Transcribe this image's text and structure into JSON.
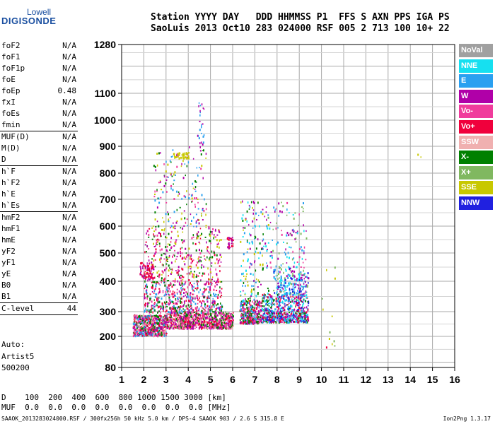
{
  "brand": {
    "line1": "Lowell",
    "line2": "DIGISONDE"
  },
  "header": {
    "line1": "Station YYYY DAY   DDD HHMMSS P1  FFS S AXN PPS IGA PS",
    "line2": "SaoLuis 2013 Oct10 283 024000 RSF 005 2 713 100 10+ 22"
  },
  "parameters": [
    {
      "k": "foF2",
      "v": "N/A"
    },
    {
      "k": "foF1",
      "v": "N/A"
    },
    {
      "k": "foF1p",
      "v": "N/A"
    },
    {
      "k": "foE",
      "v": "N/A"
    },
    {
      "k": "foEp",
      "v": "0.48"
    },
    {
      "k": "fxI",
      "v": "N/A"
    },
    {
      "k": "foEs",
      "v": "N/A"
    },
    {
      "k": "fmin",
      "v": "N/A"
    },
    {
      "sep": true
    },
    {
      "k": "MUF(D)",
      "v": "N/A"
    },
    {
      "k": "M(D)",
      "v": "N/A"
    },
    {
      "k": "D",
      "v": "N/A"
    },
    {
      "sep": true
    },
    {
      "k": "h`F",
      "v": "N/A"
    },
    {
      "k": "h`F2",
      "v": "N/A"
    },
    {
      "k": "h`E",
      "v": "N/A"
    },
    {
      "k": "h`Es",
      "v": "N/A"
    },
    {
      "sep": true
    },
    {
      "k": "hmF2",
      "v": "N/A"
    },
    {
      "k": "hmF1",
      "v": "N/A"
    },
    {
      "k": "hmE",
      "v": "N/A"
    },
    {
      "k": "yF2",
      "v": "N/A"
    },
    {
      "k": "yF1",
      "v": "N/A"
    },
    {
      "k": "yE",
      "v": "N/A"
    },
    {
      "k": "B0",
      "v": "N/A"
    },
    {
      "k": "B1",
      "v": "N/A"
    },
    {
      "sep": true
    },
    {
      "k": "C-level",
      "v": "44"
    },
    {
      "sep": true
    }
  ],
  "auto": {
    "line1": "Auto:",
    "line2": "Artist5",
    "line3": "500200"
  },
  "footer": {
    "line1": "D    100  200  400  600  800 1000 1500 3000 [km]",
    "line2": "MUF  0.0  0.0  0.0  0.0  0.0  0.0  0.0  0.0 [MHz]",
    "line3": "SAAOK_2013283024000.RSF / 300fx256h 50 kHz 5.0 km / DPS-4 SAAOK 903 / 2.6 S 315.8 E",
    "version": "Ion2Png 1.3.17"
  },
  "legend": [
    {
      "label": "NoVal",
      "color": "#a0a0a0"
    },
    {
      "label": "NNE",
      "color": "#16e0f0"
    },
    {
      "label": "E",
      "color": "#2aa0f0"
    },
    {
      "label": "W",
      "color": "#b000a8"
    },
    {
      "label": "Vo-",
      "color": "#f03c9c"
    },
    {
      "label": "Vo+",
      "color": "#f0003c"
    },
    {
      "label": "SSW",
      "color": "#f0b0b0"
    },
    {
      "label": "X-",
      "color": "#008000"
    },
    {
      "label": "X+",
      "color": "#80b860"
    },
    {
      "label": "SSE",
      "color": "#c8c800"
    },
    {
      "label": "NNW",
      "color": "#2020e0"
    }
  ],
  "chart_data": {
    "type": "scatter",
    "xlim": [
      1,
      16
    ],
    "x_ticks": [
      "1",
      "2",
      "3",
      "4",
      "5",
      "6",
      "7",
      "8",
      "9",
      "10",
      "11",
      "12",
      "13",
      "14",
      "15",
      "16"
    ],
    "y_ticks": [
      {
        "value": 80,
        "label": "80"
      },
      {
        "value": 200,
        "label": "200"
      },
      {
        "value": 300,
        "label": "300"
      },
      {
        "value": 400,
        "label": "400"
      },
      {
        "value": 500,
        "label": "500"
      },
      {
        "value": 600,
        "label": "600"
      },
      {
        "value": 700,
        "label": "700"
      },
      {
        "value": 800,
        "label": "800"
      },
      {
        "value": 900,
        "label": "900"
      },
      {
        "value": 1000,
        "label": "1000"
      },
      {
        "value": 1100,
        "label": "1100"
      },
      {
        "value": 1280,
        "label": "1280"
      }
    ],
    "ylim": [
      80,
      1280
    ],
    "grid": true,
    "legend_placement": "right",
    "clusters": [
      {
        "x": [
          1.5,
          3.0
        ],
        "y": [
          205,
          290
        ],
        "n": 700,
        "colors": [
          "#f0003c",
          "#f03c9c",
          "#b000a8",
          "#008000",
          "#2aa0f0",
          "#f0b0b0"
        ]
      },
      {
        "x": [
          3.0,
          6.0
        ],
        "y": [
          235,
          300
        ],
        "n": 900,
        "colors": [
          "#f0003c",
          "#f03c9c",
          "#b000a8",
          "#f0b0b0",
          "#008000"
        ]
      },
      {
        "x": [
          2.0,
          5.5
        ],
        "y": [
          300,
          400
        ],
        "n": 500,
        "colors": [
          "#f0003c",
          "#b000a8",
          "#f03c9c",
          "#2aa0f0",
          "#008000"
        ]
      },
      {
        "x": [
          2.0,
          5.5
        ],
        "y": [
          400,
          600
        ],
        "n": 380,
        "colors": [
          "#b000a8",
          "#f03c9c",
          "#c8c800",
          "#008000",
          "#f0003c"
        ]
      },
      {
        "x": [
          1.8,
          2.4
        ],
        "y": [
          410,
          470
        ],
        "n": 80,
        "colors": [
          "#f0003c",
          "#b000a8"
        ]
      },
      {
        "x": [
          2.4,
          4.8
        ],
        "y": [
          600,
          900
        ],
        "n": 170,
        "colors": [
          "#b000a8",
          "#f03c9c",
          "#c8c800",
          "#008000",
          "#2aa0f0"
        ]
      },
      {
        "x": [
          3.3,
          4.0
        ],
        "y": [
          858,
          880
        ],
        "n": 40,
        "colors": [
          "#c8c800"
        ]
      },
      {
        "x": [
          5.7,
          6.0
        ],
        "y": [
          520,
          560
        ],
        "n": 30,
        "colors": [
          "#b000a8",
          "#f0003c"
        ]
      },
      {
        "x": [
          6.3,
          7.3
        ],
        "y": [
          255,
          340
        ],
        "n": 320,
        "colors": [
          "#f0003c",
          "#b000a8",
          "#f03c9c",
          "#2aa0f0",
          "#008000"
        ]
      },
      {
        "x": [
          6.3,
          7.6
        ],
        "y": [
          340,
          700
        ],
        "n": 150,
        "colors": [
          "#b000a8",
          "#2aa0f0",
          "#c8c800",
          "#008000",
          "#16e0f0"
        ]
      },
      {
        "x": [
          7.3,
          9.4
        ],
        "y": [
          260,
          360
        ],
        "n": 650,
        "colors": [
          "#16e0f0",
          "#2aa0f0",
          "#2020e0",
          "#b000a8",
          "#f0003c",
          "#008000"
        ]
      },
      {
        "x": [
          7.8,
          9.4
        ],
        "y": [
          360,
          450
        ],
        "n": 200,
        "colors": [
          "#16e0f0",
          "#2aa0f0",
          "#b000a8",
          "#80b860",
          "#2020e0"
        ]
      },
      {
        "x": [
          7.5,
          9.3
        ],
        "y": [
          450,
          700
        ],
        "n": 110,
        "colors": [
          "#2aa0f0",
          "#16e0f0",
          "#b000a8",
          "#f03c9c",
          "#80b860"
        ]
      },
      {
        "x": [
          4.4,
          4.7
        ],
        "y": [
          900,
          1100
        ],
        "n": 25,
        "colors": [
          "#b000a8",
          "#2aa0f0"
        ]
      },
      {
        "x": [
          10.0,
          10.6
        ],
        "y": [
          160,
          470
        ],
        "n": 12,
        "colors": [
          "#c8c800",
          "#f0003c",
          "#80b860"
        ]
      },
      {
        "x": [
          14.2,
          14.5
        ],
        "y": [
          860,
          875
        ],
        "n": 2,
        "colors": [
          "#c8c800"
        ]
      }
    ]
  }
}
